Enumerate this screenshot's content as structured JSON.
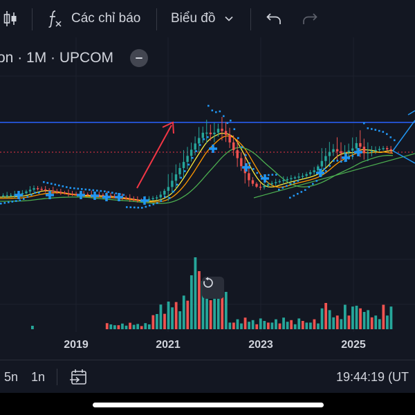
{
  "toolbar": {
    "indicators_label": "Các chỉ báo",
    "chart_type_label": "Biểu đồ",
    "icons": [
      "candles-icon",
      "function-icon",
      "chevron-down-icon",
      "undo-icon",
      "redo-icon"
    ]
  },
  "legend": {
    "symbol_info": "on · 1M · UPCOM"
  },
  "colors": {
    "background": "#131722",
    "up": "#26a69a",
    "down": "#ef5350",
    "resistance_line": "#2962ff",
    "price_line": "#f23645",
    "arrow": "#f23645",
    "sar": "#2196f3",
    "ma_fast": "#ff9800",
    "ma_slow": "#4caf50",
    "ma_mid": "#ffeb3b",
    "cross_marker": "#2196f3",
    "grid": "#1e222d"
  },
  "chart_data": {
    "type": "candlestick",
    "interval": "1M",
    "x_axis_labels": [
      "2019",
      "2021",
      "2023",
      "2025"
    ],
    "series": [
      {
        "name": "price",
        "shape": "monthly candles with parabolic SAR dots, moving averages and blue cross markers"
      },
      {
        "name": "volume",
        "shape": "monthly volume bars"
      }
    ]
  },
  "bottom_bar": {
    "range_5y": "5n",
    "range_1y": "1n",
    "clock": "19:44:19 (UT"
  }
}
